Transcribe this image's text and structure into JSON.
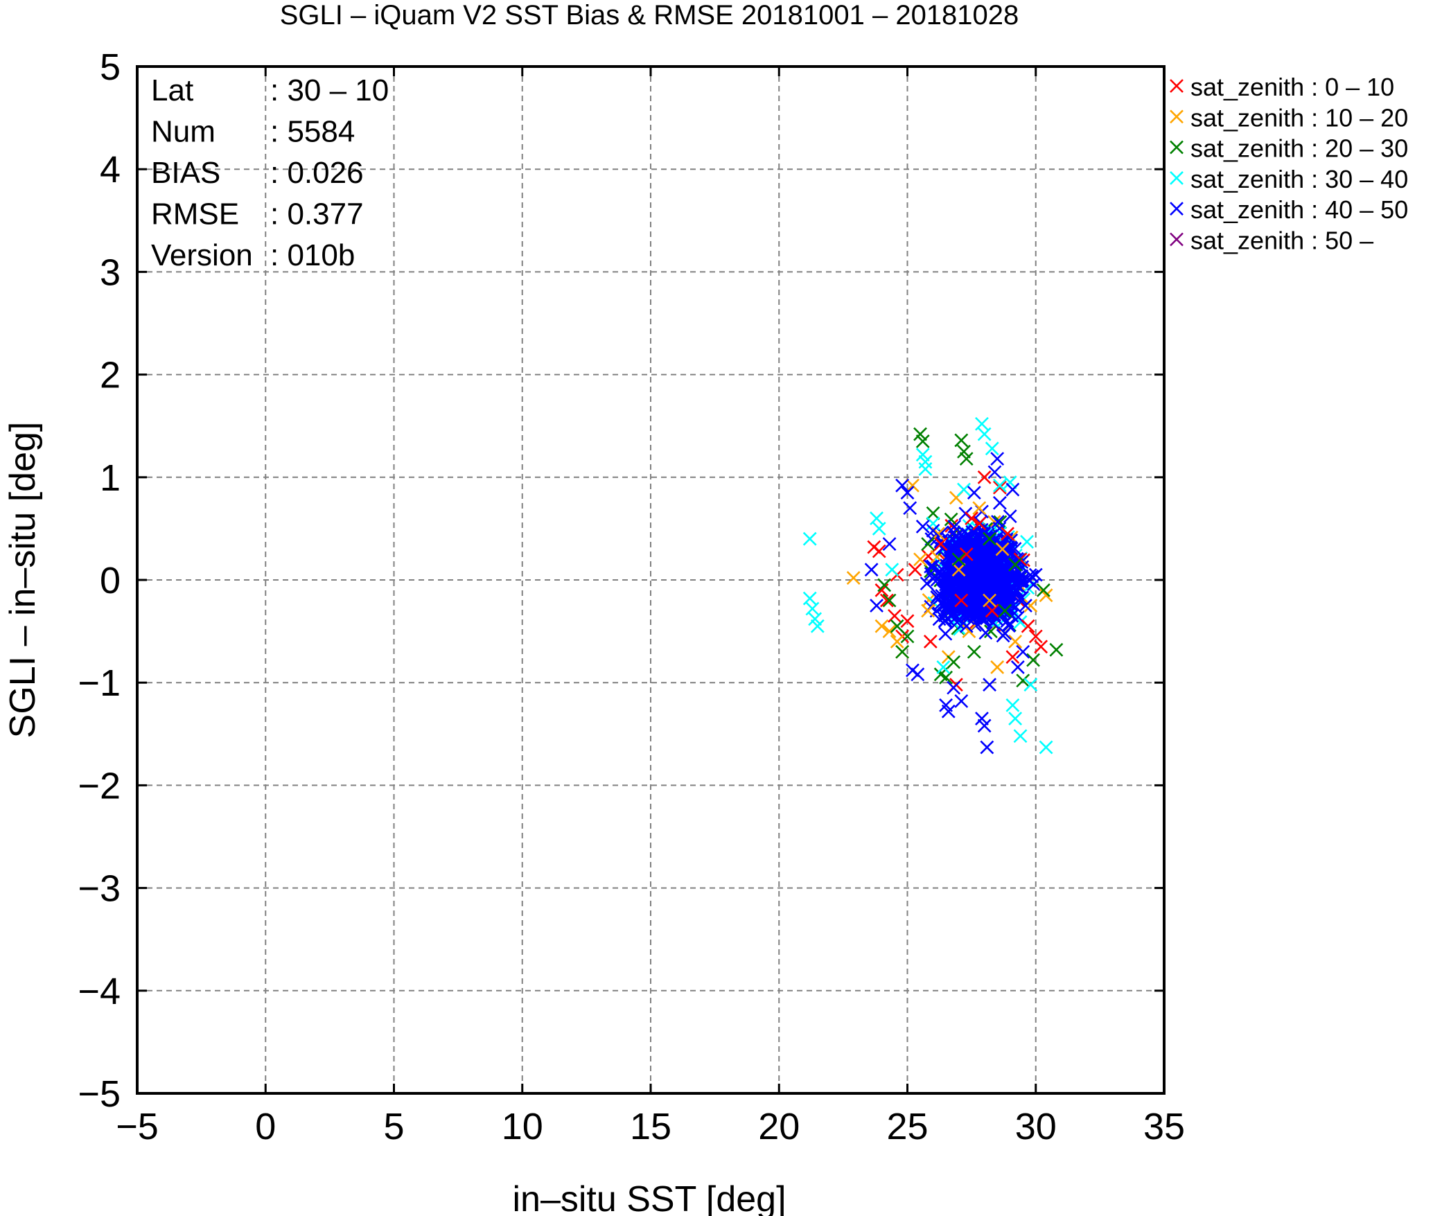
{
  "chart_data": {
    "type": "scatter",
    "title": "SGLI – iQuam V2 SST Bias & RMSE 20181001 – 20181028",
    "xlabel": "in–situ SST [deg]",
    "ylabel": "SGLI – in–situ [deg]",
    "xlim": [
      -5,
      35
    ],
    "ylim": [
      -5,
      5
    ],
    "xticks": [
      -5,
      0,
      5,
      10,
      15,
      20,
      25,
      30,
      35
    ],
    "yticks": [
      -5,
      -4,
      -3,
      -2,
      -1,
      0,
      1,
      2,
      3,
      4,
      5
    ],
    "xtick_labels": [
      "−5",
      "0",
      "5",
      "10",
      "15",
      "20",
      "25",
      "30",
      "35"
    ],
    "ytick_labels": [
      "−5",
      "−4",
      "−3",
      "−2",
      "−1",
      "0",
      "1",
      "2",
      "3",
      "4",
      "5"
    ],
    "grid": true,
    "marker": "x",
    "legend_position": "outside-top-right",
    "stats": [
      {
        "label": "Lat",
        "value": ": 30 – 10"
      },
      {
        "label": "Num",
        "value": ": 5584"
      },
      {
        "label": "BIAS",
        "value": ": 0.026"
      },
      {
        "label": "RMSE",
        "value": ": 0.377"
      },
      {
        "label": "Version",
        "value": ": 010b"
      }
    ],
    "series": [
      {
        "name": "sat_zenith :  0 – 10",
        "color": "#ff0000",
        "x": [
          23.7,
          23.9,
          24.0,
          24.2,
          24.5,
          24.8,
          25.3,
          25.9,
          26.3,
          26.9,
          27.3,
          27.8,
          28.0,
          28.3,
          28.6,
          28.9,
          29.1,
          29.4,
          29.7,
          30.0,
          30.2,
          24.6,
          25.0,
          27.1,
          27.5
        ],
        "y": [
          0.32,
          0.28,
          -0.1,
          -0.2,
          -0.35,
          -0.55,
          0.1,
          -0.6,
          0.35,
          -1.02,
          0.25,
          0.55,
          1.0,
          -0.3,
          0.9,
          0.45,
          -0.75,
          0.2,
          -0.45,
          -0.55,
          -0.65,
          0.05,
          -0.4,
          -0.2,
          0.6
        ]
      },
      {
        "name": "sat_zenith : 10 – 20",
        "color": "#ffa500",
        "x": [
          22.9,
          24.0,
          24.3,
          24.6,
          25.2,
          25.5,
          25.8,
          26.2,
          26.6,
          27.0,
          27.4,
          27.8,
          28.2,
          28.7,
          29.2,
          29.8,
          30.4,
          24.8,
          26.9,
          28.5
        ],
        "y": [
          0.02,
          -0.45,
          -0.5,
          -0.6,
          0.92,
          0.2,
          -0.3,
          0.45,
          -0.75,
          0.1,
          -0.5,
          0.7,
          -0.2,
          0.3,
          -0.6,
          -0.25,
          -0.15,
          -0.7,
          0.8,
          -0.85
        ]
      },
      {
        "name": "sat_zenith : 20 – 30",
        "color": "#008000",
        "x": [
          25.5,
          25.6,
          27.1,
          27.2,
          27.3,
          24.1,
          24.3,
          24.6,
          24.8,
          25.0,
          26.3,
          26.5,
          26.8,
          27.6,
          28.2,
          29.5,
          29.9,
          30.3,
          30.8,
          25.8,
          26.0,
          27.0,
          28.8,
          29.2
        ],
        "y": [
          1.42,
          1.35,
          1.36,
          1.25,
          1.18,
          -0.05,
          -0.2,
          -0.45,
          -0.7,
          -0.55,
          -0.92,
          -0.95,
          -0.8,
          -0.7,
          0.4,
          -0.98,
          -0.78,
          -0.1,
          -0.68,
          0.35,
          0.65,
          0.2,
          -0.3,
          0.15
        ]
      },
      {
        "name": "sat_zenith : 30 – 40",
        "color": "#00ffff",
        "x": [
          21.2,
          21.2,
          21.3,
          21.4,
          21.5,
          23.8,
          23.9,
          25.6,
          25.7,
          25.7,
          27.9,
          28.0,
          28.3,
          29.1,
          29.2,
          29.4,
          30.4,
          29.8,
          28.6,
          27.2,
          26.0,
          26.4,
          29.0,
          24.4
        ],
        "y": [
          0.4,
          -0.18,
          -0.28,
          -0.38,
          -0.45,
          0.6,
          0.5,
          1.22,
          1.15,
          1.08,
          1.52,
          1.42,
          1.28,
          -1.22,
          -1.35,
          -1.52,
          -1.63,
          -1.02,
          0.92,
          0.88,
          0.55,
          -0.85,
          0.95,
          0.1
        ]
      },
      {
        "name": "sat_zenith : 40 – 50",
        "color": "#0000ff",
        "x": [
          23.6,
          23.8,
          24.3,
          24.8,
          25.0,
          25.1,
          25.2,
          25.4,
          26.5,
          26.6,
          26.8,
          27.1,
          27.9,
          28.0,
          28.1,
          28.2,
          28.4,
          28.5,
          28.6,
          29.0,
          29.3,
          29.5,
          25.6,
          26.0,
          26.2,
          26.7,
          27.3,
          27.6,
          28.8,
          29.1,
          29.6,
          30.0
        ],
        "y": [
          0.1,
          -0.25,
          0.35,
          0.92,
          0.85,
          0.7,
          -0.88,
          -0.92,
          -1.22,
          -1.28,
          -1.05,
          -1.18,
          -1.35,
          -1.42,
          -1.63,
          -1.02,
          1.05,
          1.18,
          0.75,
          0.62,
          -0.85,
          -0.7,
          0.52,
          0.48,
          -0.15,
          0.3,
          -0.45,
          0.85,
          -0.52,
          0.88,
          -0.25,
          0.05
        ]
      },
      {
        "name": "sat_zenith : 50 –",
        "color": "#800080",
        "x": [],
        "y": []
      }
    ],
    "dense_cluster": {
      "color_order": [
        "#ff0000",
        "#ffa500",
        "#008000",
        "#00ffff",
        "#0000ff"
      ],
      "x_range": [
        24.6,
        30.2
      ],
      "y_range": [
        -0.85,
        0.85
      ],
      "center": [
        27.8,
        0.03
      ]
    }
  }
}
